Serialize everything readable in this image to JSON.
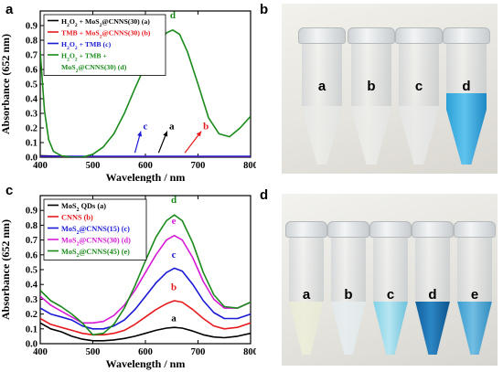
{
  "panels": {
    "a": "a",
    "b": "b",
    "c": "c",
    "d": "d"
  },
  "photo_b_labels": [
    "a",
    "b",
    "c",
    "d"
  ],
  "photo_d_labels": [
    "a",
    "b",
    "c",
    "d",
    "e"
  ],
  "chart_data": [
    {
      "type": "line",
      "panel": "a",
      "xlabel": "Wavelength / nm",
      "ylabel": "Absorbance (652 nm)",
      "xlim": [
        400,
        800
      ],
      "ylim": [
        0,
        1.0
      ],
      "xticks": [
        400,
        500,
        600,
        700,
        800
      ],
      "yticks": [
        0.0,
        0.1,
        0.2,
        0.3,
        0.4,
        0.5,
        0.6,
        0.7,
        0.8,
        0.9
      ],
      "legend": [
        {
          "text": "H2O2 + MoS2@CNNS(30) (a)",
          "color": "#000000"
        },
        {
          "text": "TMB + MoS2@CNNS(30) (b)",
          "color": "#e8191c"
        },
        {
          "text": "H2O2 + TMB (c)",
          "color": "#1a1ad6"
        },
        {
          "text": "H2O2 + TMB +",
          "color": "#1a8a1a"
        },
        {
          "text": "MoS2@CNNS(30) (d)",
          "color": "#1a8a1a"
        }
      ],
      "series": [
        {
          "name": "a",
          "color": "#000000",
          "x": [
            400,
            450,
            500,
            550,
            600,
            650,
            700,
            750,
            800
          ],
          "y": [
            0.01,
            0.005,
            0.003,
            0.002,
            0.002,
            0.002,
            0.002,
            0.002,
            0.002
          ]
        },
        {
          "name": "b",
          "color": "#e8191c",
          "x": [
            400,
            450,
            500,
            550,
            600,
            650,
            700,
            750,
            800
          ],
          "y": [
            0.004,
            0.004,
            0.004,
            0.004,
            0.004,
            0.004,
            0.004,
            0.004,
            0.004
          ]
        },
        {
          "name": "c",
          "color": "#1a1ad6",
          "x": [
            400,
            450,
            500,
            550,
            600,
            650,
            700,
            750,
            800
          ],
          "y": [
            0.006,
            0.006,
            0.006,
            0.006,
            0.006,
            0.006,
            0.006,
            0.006,
            0.006
          ]
        },
        {
          "name": "d",
          "color": "#1a8a1a",
          "x": [
            400,
            408,
            416,
            425,
            440,
            460,
            480,
            500,
            520,
            540,
            560,
            580,
            600,
            620,
            640,
            652,
            665,
            680,
            700,
            720,
            740,
            760,
            780,
            800
          ],
          "y": [
            0.72,
            0.32,
            0.12,
            0.04,
            0.01,
            0.0,
            0.0,
            0.02,
            0.07,
            0.16,
            0.3,
            0.47,
            0.63,
            0.76,
            0.85,
            0.87,
            0.84,
            0.72,
            0.5,
            0.27,
            0.16,
            0.14,
            0.2,
            0.28
          ]
        }
      ],
      "annotations": [
        {
          "text": "d",
          "x": 652,
          "y": 0.95,
          "color": "#1a8a1a",
          "arrow": false
        },
        {
          "text": "c",
          "x": 600,
          "y": 0.19,
          "color": "#1a1ad6",
          "arrow": true,
          "ax": 580,
          "ay": 0.03
        },
        {
          "text": "a",
          "x": 650,
          "y": 0.19,
          "color": "#000000",
          "arrow": true,
          "ax": 625,
          "ay": 0.03
        },
        {
          "text": "b",
          "x": 715,
          "y": 0.19,
          "color": "#e8191c",
          "arrow": true,
          "ax": 675,
          "ay": 0.03
        }
      ]
    },
    {
      "type": "line",
      "panel": "c",
      "xlabel": "Wavelength / nm",
      "ylabel": "Absorbance (652 nm)",
      "xlim": [
        400,
        800
      ],
      "ylim": [
        0,
        1.0
      ],
      "xticks": [
        400,
        500,
        600,
        700,
        800
      ],
      "yticks": [
        0.0,
        0.1,
        0.2,
        0.3,
        0.4,
        0.5,
        0.6,
        0.7,
        0.8,
        0.9
      ],
      "legend": [
        {
          "text": "MoS2 QDs (a)",
          "color": "#000000"
        },
        {
          "text": "CNNS (b)",
          "color": "#e8191c"
        },
        {
          "text": "MoS2@CNNS(15) (c)",
          "color": "#1a1ad6"
        },
        {
          "text": "MoS2@CNNS(30) (d)",
          "color": "#d61ad6"
        },
        {
          "text": "MoS2@CNNS(45) (e)",
          "color": "#1a8a1a"
        }
      ],
      "series": [
        {
          "name": "a",
          "color": "#000000",
          "x": [
            400,
            420,
            440,
            460,
            480,
            500,
            520,
            540,
            560,
            580,
            600,
            620,
            640,
            655,
            670,
            690,
            710,
            730,
            750,
            775,
            800
          ],
          "y": [
            0.14,
            0.1,
            0.08,
            0.05,
            0.03,
            0.02,
            0.02,
            0.025,
            0.035,
            0.05,
            0.07,
            0.09,
            0.105,
            0.11,
            0.105,
            0.085,
            0.06,
            0.045,
            0.04,
            0.05,
            0.07
          ]
        },
        {
          "name": "b",
          "color": "#e8191c",
          "x": [
            400,
            420,
            440,
            460,
            480,
            500,
            520,
            540,
            560,
            580,
            600,
            620,
            640,
            655,
            670,
            690,
            710,
            730,
            750,
            775,
            800
          ],
          "y": [
            0.17,
            0.13,
            0.11,
            0.09,
            0.07,
            0.06,
            0.06,
            0.07,
            0.09,
            0.13,
            0.18,
            0.23,
            0.27,
            0.29,
            0.28,
            0.23,
            0.17,
            0.12,
            0.1,
            0.11,
            0.14
          ]
        },
        {
          "name": "c",
          "color": "#1a1ad6",
          "x": [
            400,
            420,
            440,
            460,
            480,
            500,
            520,
            540,
            560,
            580,
            600,
            620,
            640,
            655,
            670,
            690,
            710,
            730,
            750,
            775,
            800
          ],
          "y": [
            0.24,
            0.2,
            0.18,
            0.16,
            0.12,
            0.1,
            0.1,
            0.12,
            0.16,
            0.23,
            0.32,
            0.41,
            0.48,
            0.51,
            0.49,
            0.4,
            0.29,
            0.21,
            0.17,
            0.17,
            0.2
          ]
        },
        {
          "name": "d",
          "color": "#d61ad6",
          "x": [
            400,
            420,
            440,
            460,
            480,
            500,
            520,
            540,
            560,
            580,
            600,
            620,
            640,
            655,
            670,
            690,
            710,
            730,
            750,
            775,
            800
          ],
          "y": [
            0.32,
            0.26,
            0.22,
            0.18,
            0.14,
            0.14,
            0.15,
            0.19,
            0.26,
            0.36,
            0.48,
            0.6,
            0.7,
            0.73,
            0.7,
            0.58,
            0.42,
            0.3,
            0.24,
            0.24,
            0.28
          ]
        },
        {
          "name": "e",
          "color": "#1a8a1a",
          "x": [
            400,
            420,
            440,
            460,
            480,
            500,
            520,
            540,
            560,
            580,
            600,
            620,
            640,
            655,
            670,
            690,
            710,
            730,
            750,
            775,
            800
          ],
          "y": [
            0.36,
            0.29,
            0.25,
            0.2,
            0.14,
            0.06,
            0.07,
            0.13,
            0.24,
            0.39,
            0.56,
            0.72,
            0.83,
            0.87,
            0.83,
            0.68,
            0.48,
            0.33,
            0.25,
            0.24,
            0.28
          ]
        }
      ],
      "annotations": [
        {
          "text": "d",
          "x": 654,
          "y": 0.95,
          "color": "#1a8a1a",
          "arrow": false
        },
        {
          "text": "e",
          "x": 654,
          "y": 0.81,
          "color": "#d61ad6",
          "arrow": false
        },
        {
          "text": "c",
          "x": 654,
          "y": 0.58,
          "color": "#1a1ad6",
          "arrow": false
        },
        {
          "text": "b",
          "x": 654,
          "y": 0.36,
          "color": "#e8191c",
          "arrow": false
        },
        {
          "text": "a",
          "x": 654,
          "y": 0.15,
          "color": "#000000",
          "arrow": false
        }
      ]
    }
  ]
}
